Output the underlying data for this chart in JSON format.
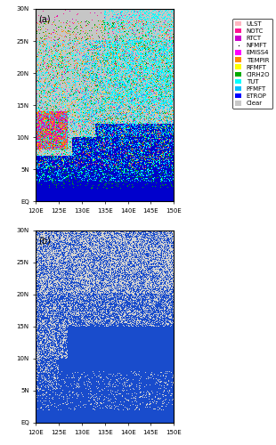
{
  "title_a": "(a)",
  "title_b": "(b)",
  "lon_min": 120,
  "lon_max": 150,
  "lat_min": 0,
  "lat_max": 30,
  "xticks": [
    120,
    125,
    130,
    135,
    140,
    145,
    150
  ],
  "yticks": [
    0,
    5,
    10,
    15,
    20,
    25,
    30
  ],
  "legend_labels": [
    "ULST",
    "NOTC",
    "RTCT",
    "NFMFT",
    "EMISS4",
    "TEMPIR",
    "RFMFT",
    "CIRH2O",
    "TUT",
    "PFMFT",
    "ETROP",
    "Clear"
  ],
  "legend_colors": [
    "#ffb6c1",
    "#ff1493",
    "#cc00cc",
    "#000000",
    "#ff00ff",
    "#ff8c00",
    "#ffff00",
    "#00aa00",
    "#00ffff",
    "#00bfff",
    "#0000ff",
    "#c8c8c8"
  ],
  "figsize": [
    3.1,
    5.0
  ],
  "dpi": 100
}
